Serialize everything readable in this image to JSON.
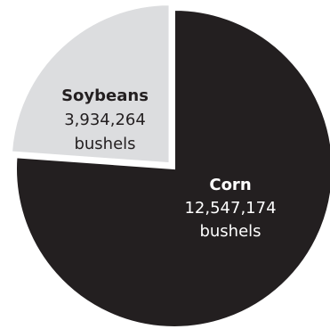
{
  "chart_data": {
    "type": "pie",
    "slices": [
      {
        "name": "Corn",
        "value": 12547174,
        "value_text": "12,547,174",
        "unit": "bushels",
        "color": "#231f20",
        "label_color": "#ffffff",
        "exploded": false
      },
      {
        "name": "Soybeans",
        "value": 3934264,
        "value_text": "3,934,264",
        "unit": "bushels",
        "color": "#dcdddf",
        "label_color": "#231f20",
        "exploded": true
      }
    ],
    "title": "",
    "legend": "none"
  }
}
